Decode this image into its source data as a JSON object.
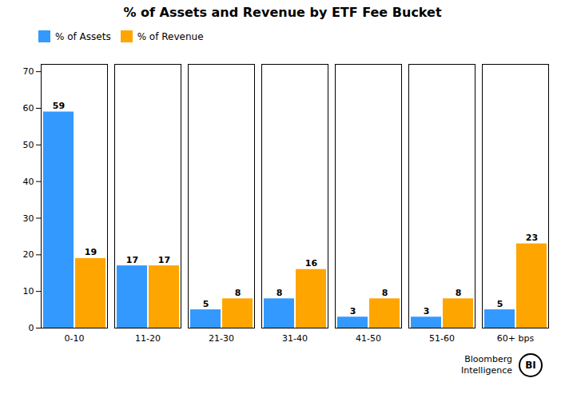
{
  "chart_data": {
    "type": "bar",
    "title": "% of Assets and Revenue by ETF Fee Bucket",
    "categories": [
      "0-10",
      "11-20",
      "21-30",
      "31-40",
      "41-50",
      "51-60",
      "60+ bps"
    ],
    "series": [
      {
        "name": "% of Assets",
        "color": "#3399FF",
        "values": [
          59,
          17,
          5,
          8,
          3,
          3,
          5
        ]
      },
      {
        "name": "% of Revenue",
        "color": "#FFA500",
        "values": [
          19,
          17,
          8,
          16,
          8,
          8,
          23
        ]
      }
    ],
    "ylim": [
      0,
      72
    ],
    "yticks": [
      0,
      10,
      20,
      30,
      40,
      50,
      60,
      70
    ],
    "grid": false,
    "legend": "upper left",
    "data_labels": true,
    "annotations": [
      "Bloomberg",
      "Intelligence",
      "BI"
    ]
  }
}
